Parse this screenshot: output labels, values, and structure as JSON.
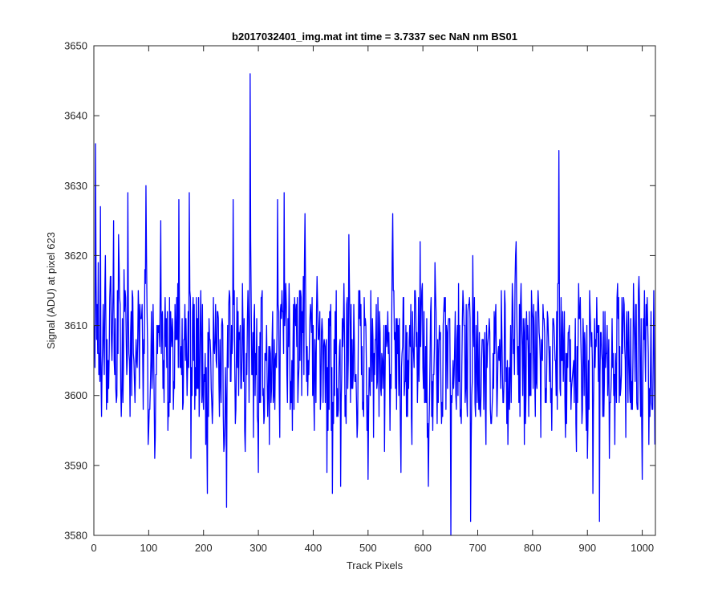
{
  "chart_data": {
    "type": "line",
    "title": "b2017032401_img.mat int time = 3.7337 sec  NaN nm BS01",
    "xlabel": "Track Pixels",
    "ylabel": "Signal (ADU) at pixel 623",
    "xlim": [
      0,
      1024
    ],
    "ylim": [
      3580,
      3650
    ],
    "xticks": [
      0,
      100,
      200,
      300,
      400,
      500,
      600,
      700,
      800,
      900,
      1000
    ],
    "yticks": [
      3580,
      3590,
      3600,
      3610,
      3620,
      3630,
      3640,
      3650
    ],
    "grid": false,
    "box": true,
    "line_color": "#0000ff",
    "series": [
      {
        "name": "",
        "anchors": [
          [
            1,
            3610
          ],
          [
            3,
            3636
          ],
          [
            5,
            3608
          ],
          [
            8,
            3619
          ],
          [
            10,
            3606
          ],
          [
            12,
            3627
          ],
          [
            14,
            3597
          ],
          [
            17,
            3613
          ],
          [
            19,
            3603
          ],
          [
            21,
            3620
          ],
          [
            23,
            3598
          ],
          [
            30,
            3617
          ],
          [
            33,
            3605
          ],
          [
            36,
            3625
          ],
          [
            40,
            3601
          ],
          [
            45,
            3623
          ],
          [
            50,
            3597
          ],
          [
            55,
            3618
          ],
          [
            60,
            3603
          ],
          [
            62,
            3629
          ],
          [
            66,
            3597
          ],
          [
            70,
            3615
          ],
          [
            74,
            3602
          ],
          [
            80,
            3608
          ],
          [
            85,
            3611
          ],
          [
            90,
            3598
          ],
          [
            95,
            3630
          ],
          [
            99,
            3593
          ],
          [
            105,
            3612
          ],
          [
            111,
            3591
          ],
          [
            117,
            3610
          ],
          [
            122,
            3625
          ],
          [
            126,
            3601
          ],
          [
            131,
            3607
          ],
          [
            135,
            3595
          ],
          [
            140,
            3612
          ],
          [
            145,
            3598
          ],
          [
            150,
            3608
          ],
          [
            155,
            3628
          ],
          [
            160,
            3603
          ],
          [
            165,
            3608
          ],
          [
            170,
            3600
          ],
          [
            174,
            3629
          ],
          [
            177,
            3591
          ],
          [
            182,
            3605
          ],
          [
            190,
            3601
          ],
          [
            196,
            3607
          ],
          [
            200,
            3598
          ],
          [
            207,
            3586
          ],
          [
            212,
            3608
          ],
          [
            217,
            3599
          ],
          [
            222,
            3613
          ],
          [
            228,
            3602
          ],
          [
            233,
            3610
          ],
          [
            237,
            3592
          ],
          [
            242,
            3584
          ],
          [
            248,
            3614
          ],
          [
            250,
            3602
          ],
          [
            254,
            3628
          ],
          [
            258,
            3596
          ],
          [
            263,
            3612
          ],
          [
            268,
            3601
          ],
          [
            272,
            3609
          ],
          [
            276,
            3592
          ],
          [
            280,
            3611
          ],
          [
            283,
            3599
          ],
          [
            285,
            3646
          ],
          [
            287,
            3612
          ],
          [
            291,
            3594
          ],
          [
            295,
            3606
          ],
          [
            300,
            3589
          ],
          [
            305,
            3614
          ],
          [
            310,
            3596
          ],
          [
            315,
            3610
          ],
          [
            320,
            3593
          ],
          [
            325,
            3608
          ],
          [
            330,
            3598
          ],
          [
            335,
            3628
          ],
          [
            339,
            3594
          ],
          [
            344,
            3612
          ],
          [
            347,
            3629
          ],
          [
            352,
            3603
          ],
          [
            357,
            3610
          ],
          [
            362,
            3595
          ],
          [
            367,
            3612
          ],
          [
            372,
            3599
          ],
          [
            377,
            3615
          ],
          [
            381,
            3609
          ],
          [
            385,
            3626
          ],
          [
            390,
            3600
          ],
          [
            396,
            3611
          ],
          [
            402,
            3595
          ],
          [
            408,
            3613
          ],
          [
            414,
            3600
          ],
          [
            420,
            3608
          ],
          [
            425,
            3589
          ],
          [
            430,
            3612
          ],
          [
            435,
            3586
          ],
          [
            440,
            3612
          ],
          [
            445,
            3597
          ],
          [
            450,
            3587
          ],
          [
            455,
            3610
          ],
          [
            460,
            3596
          ],
          [
            465,
            3623
          ],
          [
            470,
            3601
          ],
          [
            475,
            3608
          ],
          [
            480,
            3594
          ],
          [
            485,
            3615
          ],
          [
            490,
            3598
          ],
          [
            495,
            3611
          ],
          [
            500,
            3588
          ],
          [
            505,
            3615
          ],
          [
            510,
            3594
          ],
          [
            515,
            3613
          ],
          [
            520,
            3597
          ],
          [
            525,
            3606
          ],
          [
            530,
            3592
          ],
          [
            535,
            3608
          ],
          [
            540,
            3595
          ],
          [
            545,
            3626
          ],
          [
            550,
            3601
          ],
          [
            555,
            3610
          ],
          [
            560,
            3589
          ],
          [
            565,
            3614
          ],
          [
            570,
            3597
          ],
          [
            575,
            3608
          ],
          [
            580,
            3593
          ],
          [
            585,
            3615
          ],
          [
            590,
            3599
          ],
          [
            595,
            3622
          ],
          [
            600,
            3604
          ],
          [
            605,
            3607
          ],
          [
            610,
            3587
          ],
          [
            614,
            3612
          ],
          [
            618,
            3595
          ],
          [
            622,
            3619
          ],
          [
            626,
            3596
          ],
          [
            630,
            3610
          ],
          [
            635,
            3599
          ],
          [
            640,
            3612
          ],
          [
            645,
            3601
          ],
          [
            648,
            3611
          ],
          [
            651,
            3580
          ],
          [
            655,
            3605
          ],
          [
            660,
            3600
          ],
          [
            665,
            3616
          ],
          [
            670,
            3596
          ],
          [
            675,
            3610
          ],
          [
            680,
            3600
          ],
          [
            685,
            3614
          ],
          [
            687,
            3582
          ],
          [
            691,
            3620
          ],
          [
            695,
            3599
          ],
          [
            700,
            3612
          ],
          [
            705,
            3597
          ],
          [
            710,
            3608
          ],
          [
            715,
            3593
          ],
          [
            720,
            3609
          ],
          [
            725,
            3596
          ],
          [
            730,
            3612
          ],
          [
            735,
            3597
          ],
          [
            740,
            3608
          ],
          [
            745,
            3603
          ],
          [
            750,
            3613
          ],
          [
            755,
            3593
          ],
          [
            760,
            3610
          ],
          [
            765,
            3606
          ],
          [
            770,
            3622
          ],
          [
            775,
            3599
          ],
          [
            780,
            3610
          ],
          [
            785,
            3593
          ],
          [
            790,
            3608
          ],
          [
            795,
            3600
          ],
          [
            800,
            3611
          ],
          [
            805,
            3597
          ],
          [
            810,
            3615
          ],
          [
            815,
            3594
          ],
          [
            820,
            3611
          ],
          [
            825,
            3599
          ],
          [
            830,
            3606
          ],
          [
            835,
            3595
          ],
          [
            840,
            3608
          ],
          [
            845,
            3598
          ],
          [
            848,
            3635
          ],
          [
            851,
            3600
          ],
          [
            855,
            3612
          ],
          [
            860,
            3594
          ],
          [
            865,
            3609
          ],
          [
            870,
            3598
          ],
          [
            875,
            3605
          ],
          [
            880,
            3592
          ],
          [
            885,
            3611
          ],
          [
            890,
            3596
          ],
          [
            895,
            3609
          ],
          [
            900,
            3591
          ],
          [
            905,
            3612
          ],
          [
            910,
            3586
          ],
          [
            915,
            3608
          ],
          [
            920,
            3602
          ],
          [
            922,
            3582
          ],
          [
            925,
            3609
          ],
          [
            930,
            3597
          ],
          [
            935,
            3606
          ],
          [
            940,
            3591
          ],
          [
            945,
            3611
          ],
          [
            950,
            3593
          ],
          [
            955,
            3616
          ],
          [
            960,
            3600
          ],
          [
            965,
            3610
          ],
          [
            970,
            3594
          ],
          [
            975,
            3612
          ],
          [
            980,
            3598
          ],
          [
            985,
            3611
          ],
          [
            990,
            3599
          ],
          [
            995,
            3613
          ],
          [
            1000,
            3588
          ],
          [
            1003,
            3608
          ],
          [
            1006,
            3602
          ],
          [
            1009,
            3614
          ],
          [
            1012,
            3593
          ],
          [
            1016,
            3612
          ],
          [
            1018,
            3598
          ],
          [
            1021,
            3615
          ],
          [
            1023,
            3593
          ]
        ]
      }
    ]
  }
}
